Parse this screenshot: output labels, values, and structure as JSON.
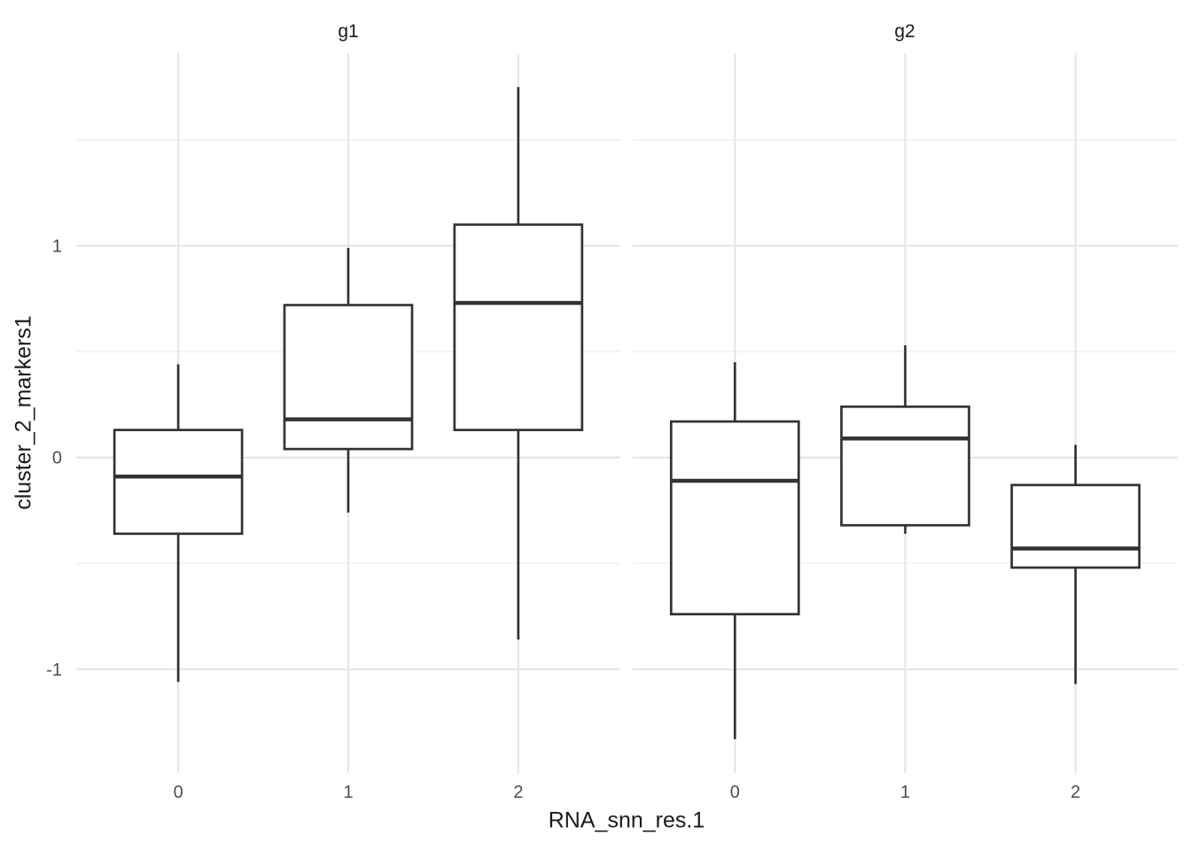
{
  "chart_data": {
    "type": "boxplot",
    "title": "",
    "xlabel": "RNA_snn_res.1",
    "ylabel": "cluster_2_markers1",
    "ylim": [
      -1.49,
      1.91
    ],
    "y_ticks": [
      1,
      0,
      -1
    ],
    "y_minor_gridlines": [
      1.5,
      0.5,
      -0.5
    ],
    "x_categories": [
      "0",
      "1",
      "2"
    ],
    "grid": "major-and-minor, no axis lines, no tick marks",
    "legend": false,
    "facets": [
      {
        "label": "g1",
        "boxes": [
          {
            "category": "0",
            "whisker_low": -1.06,
            "q1": -0.36,
            "median": -0.09,
            "q3": 0.13,
            "whisker_high": 0.44
          },
          {
            "category": "1",
            "whisker_low": -0.26,
            "q1": 0.04,
            "median": 0.18,
            "q3": 0.72,
            "whisker_high": 0.99
          },
          {
            "category": "2",
            "whisker_low": -0.86,
            "q1": 0.13,
            "median": 0.73,
            "q3": 1.1,
            "whisker_high": 1.75
          }
        ]
      },
      {
        "label": "g2",
        "boxes": [
          {
            "category": "0",
            "whisker_low": -1.33,
            "q1": -0.74,
            "median": -0.11,
            "q3": 0.17,
            "whisker_high": 0.45
          },
          {
            "category": "1",
            "whisker_low": -0.36,
            "q1": -0.32,
            "median": 0.09,
            "q3": 0.24,
            "whisker_high": 0.53
          },
          {
            "category": "2",
            "whisker_low": -1.07,
            "q1": -0.52,
            "median": -0.43,
            "q3": -0.13,
            "whisker_high": 0.06
          }
        ]
      }
    ],
    "colors": {
      "background": "#ffffff",
      "box_stroke": "#333333",
      "box_fill": "#ffffff",
      "grid_major": "#e4e4e4",
      "grid_minor": "#f1f1f1",
      "axis_text": "#4d4d4d",
      "title_text": "#1a1a1a"
    }
  }
}
